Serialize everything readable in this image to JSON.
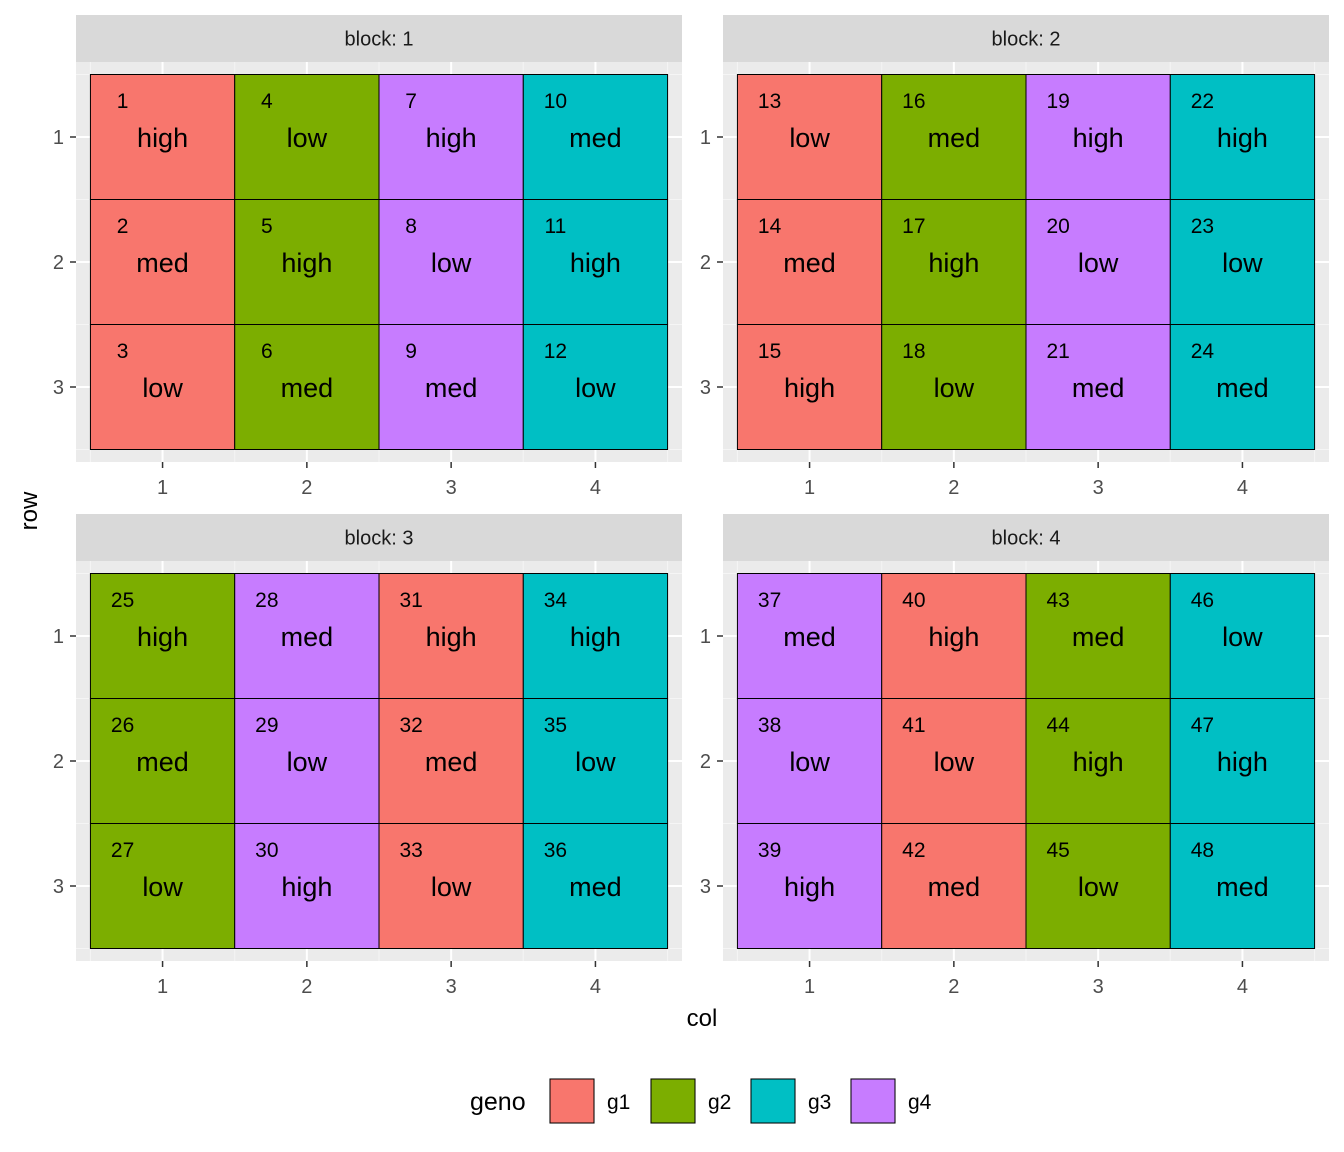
{
  "chart_data": {
    "type": "heatmap",
    "facet_prefix": "block: ",
    "x_label": "col",
    "y_label": "row",
    "x_ticks": [
      1,
      2,
      3,
      4
    ],
    "y_ticks": [
      1,
      2,
      3
    ],
    "y_reversed": true,
    "grid": true,
    "legend": {
      "title": "geno",
      "position": "bottom",
      "entries": [
        {
          "name": "g1",
          "color": "#F8766D"
        },
        {
          "name": "g2",
          "color": "#7CAE00"
        },
        {
          "name": "g3",
          "color": "#00BFC4"
        },
        {
          "name": "g4",
          "color": "#C77CFF"
        }
      ]
    },
    "panels": [
      {
        "block": "1",
        "cells": [
          {
            "id": "1",
            "row": 1,
            "col": 1,
            "geno": "g1",
            "trt": "high"
          },
          {
            "id": "2",
            "row": 2,
            "col": 1,
            "geno": "g1",
            "trt": "med"
          },
          {
            "id": "3",
            "row": 3,
            "col": 1,
            "geno": "g1",
            "trt": "low"
          },
          {
            "id": "4",
            "row": 1,
            "col": 2,
            "geno": "g2",
            "trt": "low"
          },
          {
            "id": "5",
            "row": 2,
            "col": 2,
            "geno": "g2",
            "trt": "high"
          },
          {
            "id": "6",
            "row": 3,
            "col": 2,
            "geno": "g2",
            "trt": "med"
          },
          {
            "id": "7",
            "row": 1,
            "col": 3,
            "geno": "g4",
            "trt": "high"
          },
          {
            "id": "8",
            "row": 2,
            "col": 3,
            "geno": "g4",
            "trt": "low"
          },
          {
            "id": "9",
            "row": 3,
            "col": 3,
            "geno": "g4",
            "trt": "med"
          },
          {
            "id": "10",
            "row": 1,
            "col": 4,
            "geno": "g3",
            "trt": "med"
          },
          {
            "id": "11",
            "row": 2,
            "col": 4,
            "geno": "g3",
            "trt": "high"
          },
          {
            "id": "12",
            "row": 3,
            "col": 4,
            "geno": "g3",
            "trt": "low"
          }
        ]
      },
      {
        "block": "2",
        "cells": [
          {
            "id": "13",
            "row": 1,
            "col": 1,
            "geno": "g1",
            "trt": "low"
          },
          {
            "id": "14",
            "row": 2,
            "col": 1,
            "geno": "g1",
            "trt": "med"
          },
          {
            "id": "15",
            "row": 3,
            "col": 1,
            "geno": "g1",
            "trt": "high"
          },
          {
            "id": "16",
            "row": 1,
            "col": 2,
            "geno": "g2",
            "trt": "med"
          },
          {
            "id": "17",
            "row": 2,
            "col": 2,
            "geno": "g2",
            "trt": "high"
          },
          {
            "id": "18",
            "row": 3,
            "col": 2,
            "geno": "g2",
            "trt": "low"
          },
          {
            "id": "19",
            "row": 1,
            "col": 3,
            "geno": "g4",
            "trt": "high"
          },
          {
            "id": "20",
            "row": 2,
            "col": 3,
            "geno": "g4",
            "trt": "low"
          },
          {
            "id": "21",
            "row": 3,
            "col": 3,
            "geno": "g4",
            "trt": "med"
          },
          {
            "id": "22",
            "row": 1,
            "col": 4,
            "geno": "g3",
            "trt": "high"
          },
          {
            "id": "23",
            "row": 2,
            "col": 4,
            "geno": "g3",
            "trt": "low"
          },
          {
            "id": "24",
            "row": 3,
            "col": 4,
            "geno": "g3",
            "trt": "med"
          }
        ]
      },
      {
        "block": "3",
        "cells": [
          {
            "id": "25",
            "row": 1,
            "col": 1,
            "geno": "g2",
            "trt": "high"
          },
          {
            "id": "26",
            "row": 2,
            "col": 1,
            "geno": "g2",
            "trt": "med"
          },
          {
            "id": "27",
            "row": 3,
            "col": 1,
            "geno": "g2",
            "trt": "low"
          },
          {
            "id": "28",
            "row": 1,
            "col": 2,
            "geno": "g4",
            "trt": "med"
          },
          {
            "id": "29",
            "row": 2,
            "col": 2,
            "geno": "g4",
            "trt": "low"
          },
          {
            "id": "30",
            "row": 3,
            "col": 2,
            "geno": "g4",
            "trt": "high"
          },
          {
            "id": "31",
            "row": 1,
            "col": 3,
            "geno": "g1",
            "trt": "high"
          },
          {
            "id": "32",
            "row": 2,
            "col": 3,
            "geno": "g1",
            "trt": "med"
          },
          {
            "id": "33",
            "row": 3,
            "col": 3,
            "geno": "g1",
            "trt": "low"
          },
          {
            "id": "34",
            "row": 1,
            "col": 4,
            "geno": "g3",
            "trt": "high"
          },
          {
            "id": "35",
            "row": 2,
            "col": 4,
            "geno": "g3",
            "trt": "low"
          },
          {
            "id": "36",
            "row": 3,
            "col": 4,
            "geno": "g3",
            "trt": "med"
          }
        ]
      },
      {
        "block": "4",
        "cells": [
          {
            "id": "37",
            "row": 1,
            "col": 1,
            "geno": "g4",
            "trt": "med"
          },
          {
            "id": "38",
            "row": 2,
            "col": 1,
            "geno": "g4",
            "trt": "low"
          },
          {
            "id": "39",
            "row": 3,
            "col": 1,
            "geno": "g4",
            "trt": "high"
          },
          {
            "id": "40",
            "row": 1,
            "col": 2,
            "geno": "g1",
            "trt": "high"
          },
          {
            "id": "41",
            "row": 2,
            "col": 2,
            "geno": "g1",
            "trt": "low"
          },
          {
            "id": "42",
            "row": 3,
            "col": 2,
            "geno": "g1",
            "trt": "med"
          },
          {
            "id": "43",
            "row": 1,
            "col": 3,
            "geno": "g2",
            "trt": "med"
          },
          {
            "id": "44",
            "row": 2,
            "col": 3,
            "geno": "g2",
            "trt": "high"
          },
          {
            "id": "45",
            "row": 3,
            "col": 3,
            "geno": "g2",
            "trt": "low"
          },
          {
            "id": "46",
            "row": 1,
            "col": 4,
            "geno": "g3",
            "trt": "low"
          },
          {
            "id": "47",
            "row": 2,
            "col": 4,
            "geno": "g3",
            "trt": "high"
          },
          {
            "id": "48",
            "row": 3,
            "col": 4,
            "geno": "g3",
            "trt": "med"
          }
        ]
      }
    ]
  }
}
